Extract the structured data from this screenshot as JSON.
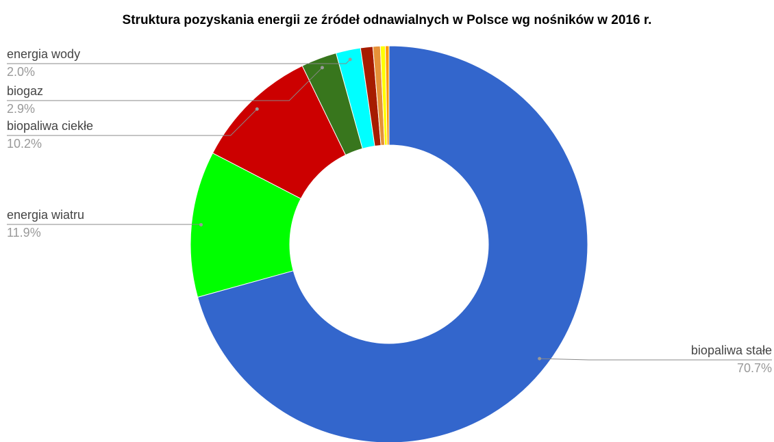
{
  "chart_data": {
    "type": "donut",
    "title": "Struktura pozyskania energii ze źródeł odnawialnych w Polsce wg nośników w 2016 r.",
    "categories": [
      "biopaliwa stałe",
      "energia wiatru",
      "biopaliwa ciekłe",
      "biogaz",
      "energia wody",
      null,
      null,
      null,
      null
    ],
    "values": [
      70.7,
      11.9,
      10.2,
      2.9,
      2.0,
      1.0,
      0.6,
      0.4,
      0.3
    ],
    "value_labels": [
      "70.7%",
      "11.9%",
      "10.2%",
      "2.9%",
      "2.0%",
      null,
      null,
      null,
      null
    ],
    "colors": [
      "#3366cc",
      "#00ff00",
      "#cc0000",
      "#38761d",
      "#00ffff",
      "#a61c00",
      "#e69138",
      "#ffff00",
      "#ff9900"
    ]
  }
}
